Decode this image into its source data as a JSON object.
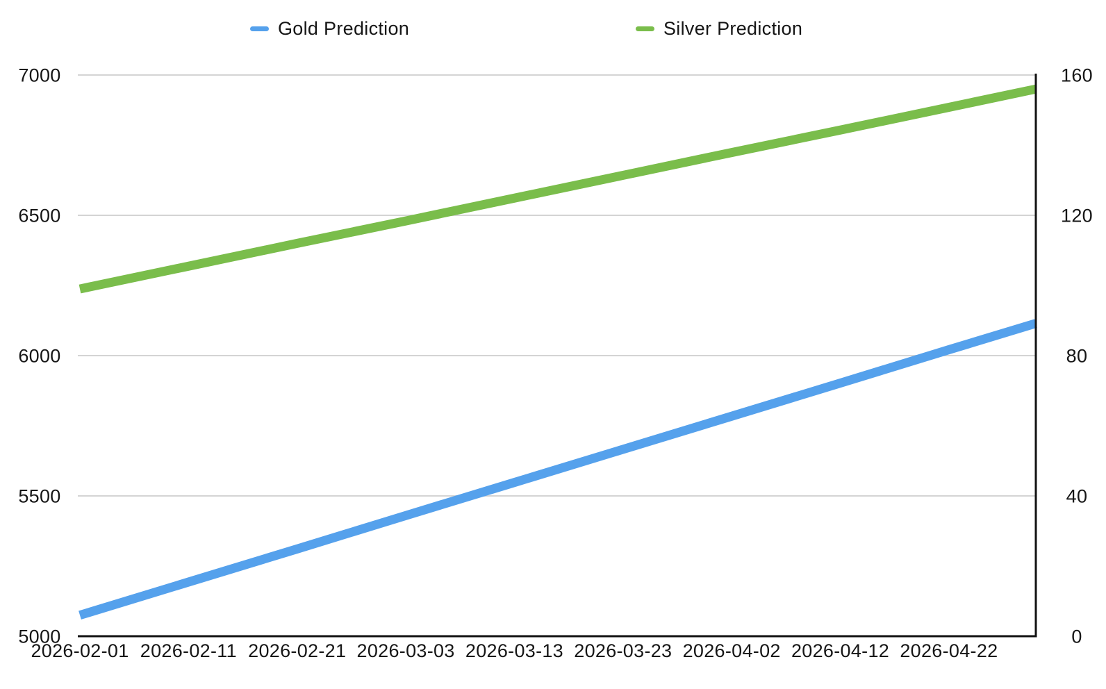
{
  "colors": {
    "background": "#ffffff",
    "grid": "#d4d4d4",
    "axis": "#111111",
    "text": "#161616",
    "gold": "#55a1ec",
    "silver": "#7abd4b"
  },
  "legend": {
    "position": "top",
    "items": [
      {
        "label": "Gold Prediction",
        "color": "#55a1ec"
      },
      {
        "label": "Silver Prediction",
        "color": "#7abd4b"
      }
    ]
  },
  "chart_data": {
    "type": "line",
    "title": "",
    "xlabel": "",
    "ylabel_left": "",
    "ylabel_right": "",
    "grid": true,
    "legend_position": "top",
    "x": [
      "2026-02-01",
      "2026-02-11",
      "2026-02-21",
      "2026-03-03",
      "2026-03-13",
      "2026-03-23",
      "2026-04-02",
      "2026-04-12",
      "2026-04-22",
      "2026-04-30"
    ],
    "x_tick_labels": [
      "2026-02-01",
      "2026-02-11",
      "2026-02-21",
      "2026-03-03",
      "2026-03-13",
      "2026-03-23",
      "2026-04-02",
      "2026-04-12",
      "2026-04-22"
    ],
    "left_axis": {
      "min": 5000,
      "max": 7000,
      "ticks": [
        7000,
        6500,
        6000,
        5500,
        5000
      ]
    },
    "right_axis": {
      "min": 0,
      "max": 160,
      "ticks": [
        160,
        120,
        80,
        40,
        0
      ]
    },
    "series": [
      {
        "name": "Gold Prediction",
        "axis": "left",
        "color": "#55a1ec",
        "values": [
          5075,
          5193,
          5311,
          5430,
          5548,
          5666,
          5784,
          5902,
          6021,
          6115
        ]
      },
      {
        "name": "Silver Prediction",
        "axis": "right",
        "color": "#7abd4b",
        "values": [
          99,
          105.5,
          112,
          118.4,
          124.9,
          131.4,
          137.9,
          144.3,
          150.8,
          156
        ]
      }
    ]
  }
}
